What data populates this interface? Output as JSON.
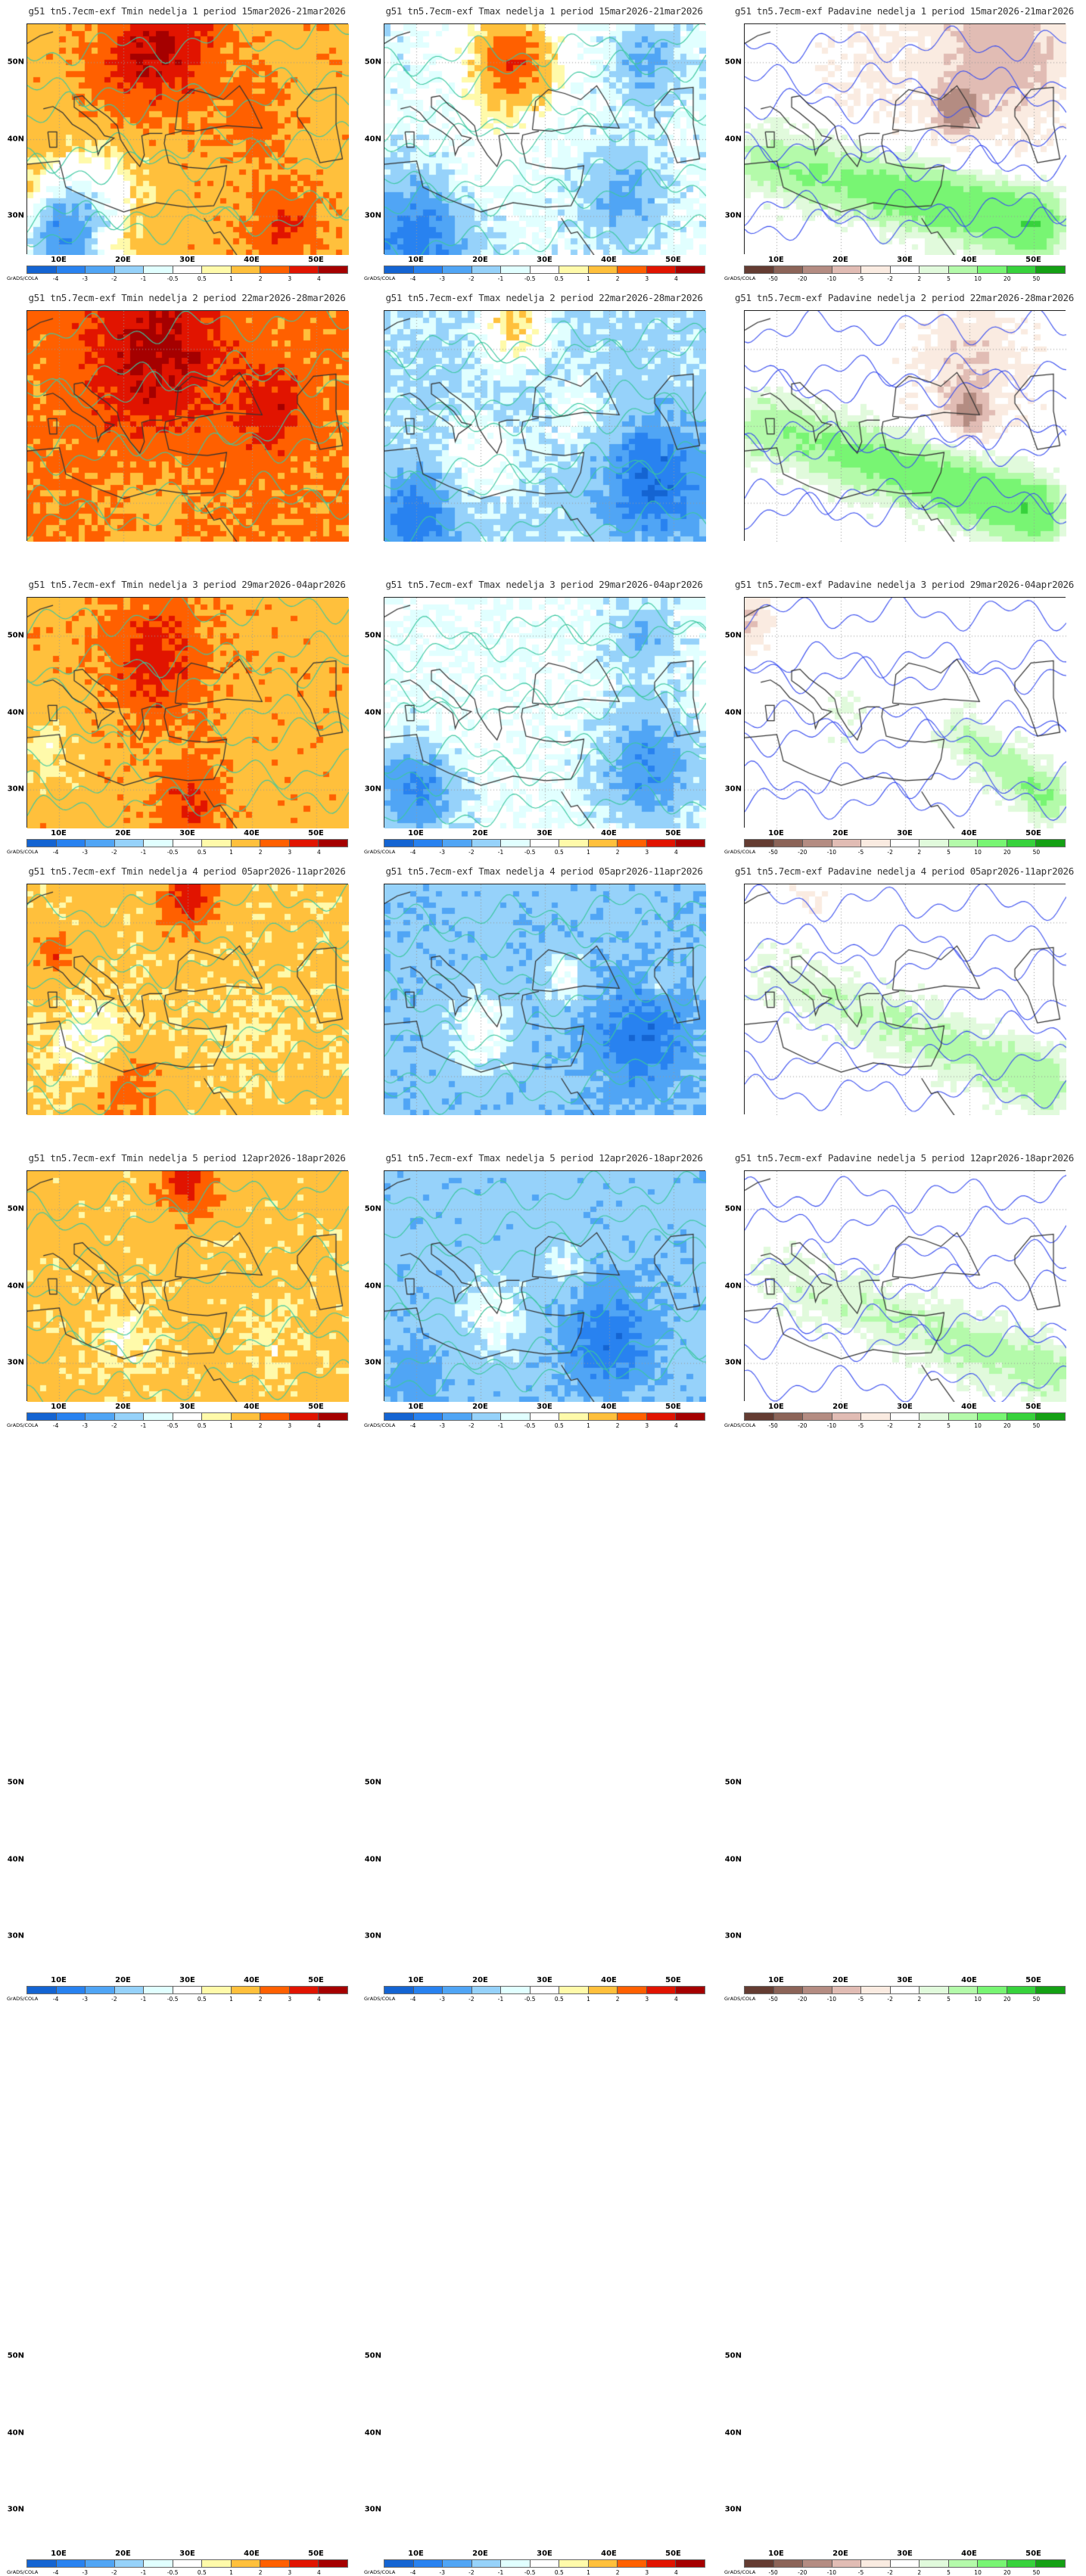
{
  "rows": [
    {
      "period": "15mar2026-21mar2026",
      "titles": [
        "g51 tn5.7ecm-exf Tmin nedelja 1 period 15mar2026-21mar2026",
        "g51 tn5.7ecm-exf Tmax nedelja 1 period 15mar2026-21mar2026",
        "g51 tn5.7ecm-exf Padavine nedelja 1 period 15mar2026-21mar2026"
      ]
    },
    {
      "period": "22mar2026-28mar2026",
      "titles": [
        "g51 tn5.7ecm-exf Tmin nedelja 2 period 22mar2026-28mar2026",
        "g51 tn5.7ecm-exf Tmax nedelja 2 period 22mar2026-28mar2026",
        "g51 tn5.7ecm-exf Padavine nedelja 2 period 22mar2026-28mar2026"
      ]
    },
    {
      "period": "29mar2026-04apr2026",
      "titles": [
        "g51 tn5.7ecm-exf Tmin nedelja 3 period 29mar2026-04apr2026",
        "g51 tn5.7ecm-exf Tmax nedelja 3 period 29mar2026-04apr2026",
        "g51 tn5.7ecm-exf Padavine nedelja 3 period 29mar2026-04apr2026"
      ]
    },
    {
      "period": "05apr2026-11apr2026",
      "titles": [
        "g51 tn5.7ecm-exf Tmin nedelja 4 period 05apr2026-11apr2026",
        "g51 tn5.7ecm-exf Tmax nedelja 4 period 05apr2026-11apr2026",
        "g51 tn5.7ecm-exf Padavine nedelja 4 period 05apr2026-11apr2026"
      ]
    },
    {
      "period": "12apr2026-18apr2026",
      "titles": [
        "g51 tn5.7ecm-exf Tmin nedelja 5 period 12apr2026-18apr2026",
        "g51 tn5.7ecm-exf Tmax nedelja 5 period 12apr2026-18apr2026",
        "g51 tn5.7ecm-exf Padavine nedelja 5 period 12apr2026-18apr2026"
      ]
    }
  ],
  "chart_data": {
    "type": "heatmap",
    "variables": [
      "Tmin",
      "Tmax",
      "Padavine"
    ],
    "lon_range": [
      5,
      55
    ],
    "lat_range": [
      25,
      55
    ],
    "lon_ticks": [
      "10E",
      "20E",
      "30E",
      "40E",
      "50E"
    ],
    "lat_ticks": [
      "50N",
      "40N",
      "30N"
    ],
    "credit": "GrADS/COLA",
    "temperature_scale": {
      "labels": [
        "-4",
        "-3",
        "-2",
        "-1",
        "-0.5",
        "0.5",
        "1",
        "2",
        "3",
        "4"
      ],
      "colors": [
        "#1464d2",
        "#2882f0",
        "#50a5f5",
        "#96d2fa",
        "#e1ffff",
        "#ffffff",
        "#fffaaa",
        "#ffc03c",
        "#ff6000",
        "#e11400",
        "#a50000"
      ]
    },
    "precipitation_scale": {
      "labels": [
        "-50",
        "-20",
        "-10",
        "-5",
        "-2",
        "2",
        "5",
        "10",
        "20",
        "50"
      ],
      "colors": [
        "#643c32",
        "#8c6458",
        "#b48c82",
        "#e1bcb4",
        "#faebe1",
        "#ffffff",
        "#e1fadc",
        "#b4faaa",
        "#78f573",
        "#37d23c",
        "#14a014"
      ]
    },
    "contour_colors": {
      "temperature": "#3cc8a0",
      "precipitation": "#3c50f0"
    }
  }
}
